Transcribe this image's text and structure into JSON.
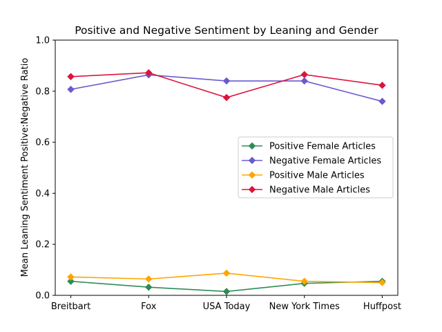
{
  "chart_data": {
    "type": "line",
    "title": "Positive and Negative Sentiment by Leaning and Gender",
    "xlabel": "",
    "ylabel": "Mean Leaning Sentiment Positive:Negative Ratio",
    "categories": [
      "Breitbart",
      "Fox",
      "USA Today",
      "New York Times",
      "Huffpost"
    ],
    "ylim": [
      0.0,
      1.0
    ],
    "yticks": [
      "0.0",
      "0.2",
      "0.4",
      "0.6",
      "0.8",
      "1.0"
    ],
    "grid": false,
    "legend_position": "center-right",
    "series": [
      {
        "name": "Positive Female Articles",
        "color": "#2e8b57",
        "marker": "diamond",
        "values": [
          0.055,
          0.032,
          0.015,
          0.047,
          0.055
        ]
      },
      {
        "name": "Negative Female Articles",
        "color": "#6a5acd",
        "marker": "diamond",
        "values": [
          0.807,
          0.864,
          0.84,
          0.84,
          0.76
        ]
      },
      {
        "name": "Positive Male Articles",
        "color": "#ffa500",
        "marker": "diamond",
        "values": [
          0.072,
          0.064,
          0.087,
          0.055,
          0.05
        ]
      },
      {
        "name": "Negative Male Articles",
        "color": "#dc143c",
        "marker": "diamond",
        "values": [
          0.857,
          0.872,
          0.775,
          0.865,
          0.823
        ]
      }
    ]
  }
}
